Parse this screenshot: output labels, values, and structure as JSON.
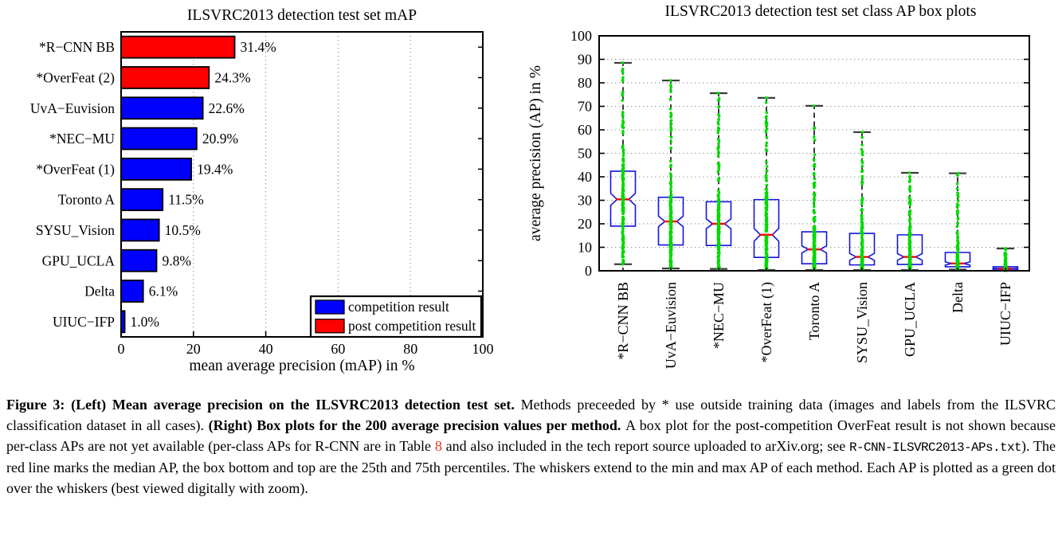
{
  "chart_data": [
    {
      "type": "bar",
      "orientation": "horizontal",
      "title": "ILSVRC2013 detection test set mAP",
      "xlabel": "mean average precision (mAP) in %",
      "xlim": [
        0,
        100
      ],
      "xticks": [
        0,
        20,
        40,
        60,
        80,
        100
      ],
      "grid": "vertical-dotted",
      "categories": [
        "*R−CNN BB",
        "*OverFeat (2)",
        "UvA−Euvision",
        "*NEC−MU",
        "*OverFeat (1)",
        "Toronto A",
        "SYSU_Vision",
        "GPU_UCLA",
        "Delta",
        "UIUC−IFP"
      ],
      "values": [
        31.4,
        24.3,
        22.6,
        20.9,
        19.4,
        11.5,
        10.5,
        9.8,
        6.1,
        1.0
      ],
      "value_labels": [
        "31.4%",
        "24.3%",
        "22.6%",
        "20.9%",
        "19.4%",
        "11.5%",
        "10.5%",
        "9.8%",
        "6.1%",
        "1.0%"
      ],
      "bar_types": [
        "post",
        "post",
        "comp",
        "comp",
        "comp",
        "comp",
        "comp",
        "comp",
        "comp",
        "comp"
      ],
      "colors": {
        "competition": "#0000ff",
        "post_competition": "#ff0000"
      },
      "legend_position": "lower-right",
      "legend": [
        {
          "key": "comp",
          "label": "competition result",
          "color": "#0000ff"
        },
        {
          "key": "post",
          "label": "post competition result",
          "color": "#ff0000"
        }
      ]
    },
    {
      "type": "boxplot",
      "title": "ILSVRC2013 detection test set class AP box plots",
      "ylabel": "average precision (AP) in %",
      "ylim": [
        0,
        100
      ],
      "yticks": [
        0,
        10,
        20,
        30,
        40,
        50,
        60,
        70,
        80,
        90,
        100
      ],
      "grid": "horizontal-dotted",
      "n_per_method": 200,
      "categories": [
        "*R−CNN BB",
        "UvA−Euvision",
        "*NEC−MU",
        "*OverFeat (1)",
        "Toronto A",
        "SYSU_Vision",
        "GPU_UCLA",
        "Delta",
        "UIUC−IFP"
      ],
      "stats": [
        {
          "min": 2.8,
          "q1": 19.0,
          "median": 30.4,
          "q3": 42.4,
          "max": 88.5
        },
        {
          "min": 1.0,
          "q1": 11.0,
          "median": 21.0,
          "q3": 31.3,
          "max": 81.0
        },
        {
          "min": 0.8,
          "q1": 10.8,
          "median": 20.0,
          "q3": 29.4,
          "max": 75.6
        },
        {
          "min": 0.3,
          "q1": 5.7,
          "median": 15.3,
          "q3": 30.3,
          "max": 73.6
        },
        {
          "min": 0.3,
          "q1": 3.0,
          "median": 9.1,
          "q3": 16.6,
          "max": 70.2
        },
        {
          "min": 0.3,
          "q1": 2.5,
          "median": 5.9,
          "q3": 15.9,
          "max": 59.0
        },
        {
          "min": 0.3,
          "q1": 2.7,
          "median": 5.9,
          "q3": 15.3,
          "max": 41.7
        },
        {
          "min": 0.5,
          "q1": 1.7,
          "median": 3.1,
          "q3": 7.8,
          "max": 41.5
        },
        {
          "min": 0.1,
          "q1": 0.2,
          "median": 0.9,
          "q3": 1.7,
          "max": 9.5
        }
      ],
      "colors": {
        "box": "#1414e0",
        "median": "#ff0000",
        "dots": "#00d900",
        "whisker": "#3c3c3c"
      }
    }
  ],
  "caption": {
    "segments": [
      {
        "style": "bold",
        "text": "Figure 3: (Left) Mean average precision on the ILSVRC2013 detection test set. "
      },
      {
        "style": "normal",
        "text": "Methods preceeded by * use outside training data (images and labels from the ILSVRC classification dataset in all cases). "
      },
      {
        "style": "bold",
        "text": "(Right) Box plots for the 200 average precision values per method. "
      },
      {
        "style": "normal",
        "text": "A box plot for the post-competition OverFeat result is not shown because per-class APs are not yet available (per-class APs for R-CNN are in Table "
      },
      {
        "style": "red",
        "text": "8"
      },
      {
        "style": "normal",
        "text": " and also included in the tech report source uploaded to arXiv.org; see "
      },
      {
        "style": "mono",
        "text": "R-CNN-ILSVRC2013-APs.txt"
      },
      {
        "style": "normal",
        "text": "). The red line marks the median AP, the box bottom and top are the 25th and 75th percentiles. The whiskers extend to the min and max AP of each method. Each AP is plotted as a green dot over the whiskers (best viewed digitally with zoom)."
      }
    ]
  }
}
